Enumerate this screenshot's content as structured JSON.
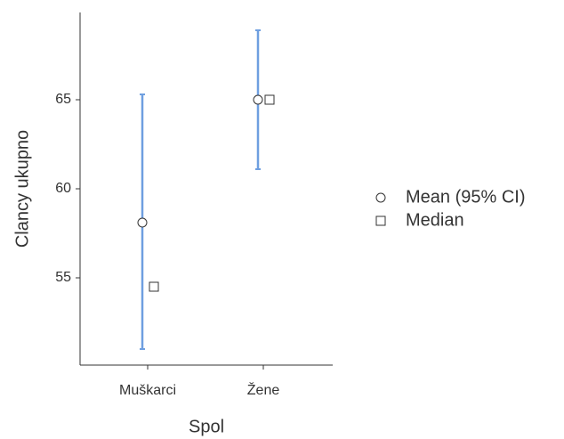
{
  "chart_data": {
    "type": "errorbar",
    "x_label": "Spol",
    "y_label": "Clancy ukupno",
    "categories": [
      "Muškarci",
      "Žene"
    ],
    "series": [
      {
        "name": "Mean (95% CI)",
        "marker": "circle",
        "color": "#ffffff",
        "ci_color": "#6f9fe0",
        "values": [
          58.1,
          65
        ],
        "lower": [
          51.0,
          61.1
        ],
        "upper": [
          65.3,
          68.9
        ]
      },
      {
        "name": "Median",
        "marker": "square",
        "color": "#ffffff",
        "values": [
          54.5,
          65
        ]
      }
    ],
    "ylim": [
      50.1,
      69.9
    ],
    "yticks": [
      55,
      60,
      65
    ],
    "grid": false
  }
}
